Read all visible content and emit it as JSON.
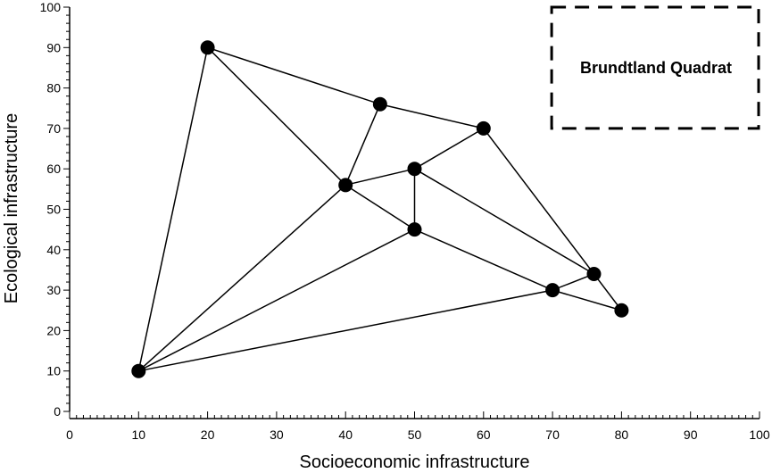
{
  "chart_data": {
    "type": "scatter",
    "xlabel": "Socioeconomic infrastructure",
    "ylabel": "Ecological infrastructure",
    "xlim": [
      0,
      100
    ],
    "ylim": [
      0,
      100
    ],
    "x_ticks": [
      0,
      10,
      20,
      30,
      40,
      50,
      60,
      70,
      80,
      90,
      100
    ],
    "y_ticks": [
      0,
      10,
      20,
      30,
      40,
      50,
      60,
      70,
      80,
      90,
      100
    ],
    "grid": false,
    "points": [
      {
        "x": 20,
        "y": 90
      },
      {
        "x": 45,
        "y": 76
      },
      {
        "x": 60,
        "y": 70
      },
      {
        "x": 40,
        "y": 56
      },
      {
        "x": 50,
        "y": 60
      },
      {
        "x": 50,
        "y": 45
      },
      {
        "x": 76,
        "y": 34
      },
      {
        "x": 70,
        "y": 30
      },
      {
        "x": 80,
        "y": 25
      },
      {
        "x": 10,
        "y": 10
      }
    ],
    "edges": [
      [
        0,
        1
      ],
      [
        1,
        2
      ],
      [
        0,
        3
      ],
      [
        0,
        9
      ],
      [
        1,
        3
      ],
      [
        3,
        4
      ],
      [
        4,
        2
      ],
      [
        3,
        5
      ],
      [
        4,
        5
      ],
      [
        2,
        6
      ],
      [
        4,
        6
      ],
      [
        5,
        7
      ],
      [
        7,
        6
      ],
      [
        7,
        8
      ],
      [
        6,
        8
      ],
      [
        9,
        3
      ],
      [
        9,
        5
      ],
      [
        9,
        7
      ]
    ],
    "region": {
      "label": "Brundtland Quadrat",
      "x": [
        70,
        100
      ],
      "y": [
        70,
        100
      ],
      "style": "dashed"
    }
  }
}
